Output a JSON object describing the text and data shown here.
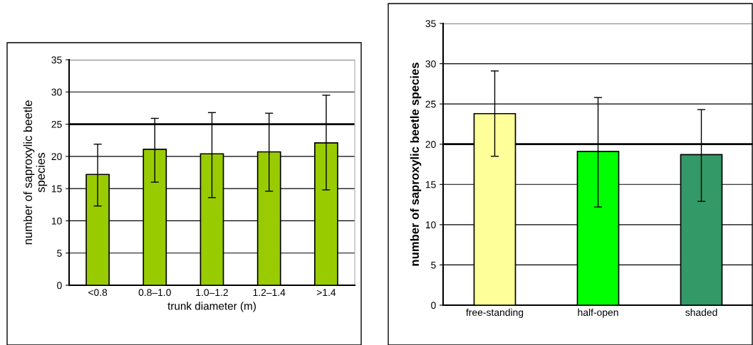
{
  "chart_data": [
    {
      "type": "bar",
      "categories": [
        "<0.8",
        "0.8–1.0",
        "1.0–1.2",
        "1.2–1.4",
        ">1.4"
      ],
      "xlabel": "trunk diameter (m)",
      "ylabel": "number of saproxylic beetle\nspecies",
      "values": [
        17.2,
        21.1,
        20.4,
        20.7,
        22.1
      ],
      "errors": [
        [
          12.3,
          21.9
        ],
        [
          16.0,
          25.9
        ],
        [
          13.6,
          26.8
        ],
        [
          14.6,
          26.7
        ],
        [
          14.8,
          29.5
        ]
      ],
      "color": "#99cc00",
      "ylim": [
        0,
        35
      ],
      "yticks": [
        0,
        5,
        10,
        15,
        20,
        25,
        30,
        35
      ],
      "grid": "y",
      "ref_lines": [
        {
          "axis": "y",
          "value": 25,
          "label": null
        }
      ]
    },
    {
      "type": "bar",
      "categories": [
        "free-standing",
        "half-open",
        "shaded"
      ],
      "ylabel": "number of saproxylic beetle species",
      "values": [
        23.8,
        19.1,
        18.7
      ],
      "errors": [
        [
          18.5,
          29.1
        ],
        [
          12.2,
          25.8
        ],
        [
          12.9,
          24.3
        ]
      ],
      "colors": [
        "#ffff99",
        "#00ff00",
        "#339966"
      ],
      "ylim": [
        0,
        35
      ],
      "yticks": [
        0,
        5,
        10,
        15,
        20,
        25,
        30,
        35
      ],
      "grid": "y",
      "ref_lines": [
        {
          "axis": "y",
          "value": 20,
          "label": null
        }
      ]
    }
  ]
}
